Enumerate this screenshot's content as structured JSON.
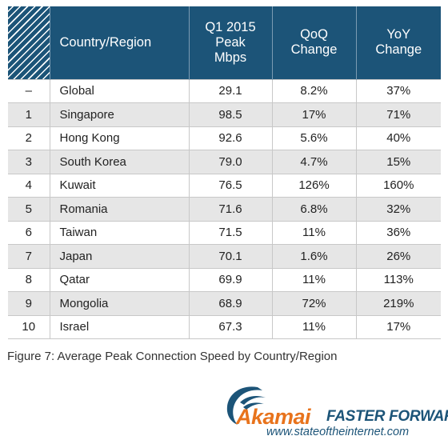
{
  "table": {
    "headers": {
      "rank": "",
      "country": "Country/Region",
      "peak": [
        "Q1 2015",
        "Peak",
        "Mbps"
      ],
      "qoq": [
        "QoQ",
        "Change"
      ],
      "yoy": [
        "YoY",
        "Change"
      ]
    },
    "rows": [
      {
        "rank": "–",
        "country": "Global",
        "peak": "29.1",
        "qoq": "8.2%",
        "yoy": "37%"
      },
      {
        "rank": "1",
        "country": "Singapore",
        "peak": "98.5",
        "qoq": "17%",
        "yoy": "71%"
      },
      {
        "rank": "2",
        "country": "Hong Kong",
        "peak": "92.6",
        "qoq": "5.6%",
        "yoy": "40%"
      },
      {
        "rank": "3",
        "country": "South Korea",
        "peak": "79.0",
        "qoq": "4.7%",
        "yoy": "15%"
      },
      {
        "rank": "4",
        "country": "Kuwait",
        "peak": "76.5",
        "qoq": "126%",
        "yoy": "160%"
      },
      {
        "rank": "5",
        "country": "Romania",
        "peak": "71.6",
        "qoq": "6.8%",
        "yoy": "32%"
      },
      {
        "rank": "6",
        "country": "Taiwan",
        "peak": "71.5",
        "qoq": "11%",
        "yoy": "36%"
      },
      {
        "rank": "7",
        "country": "Japan",
        "peak": "70.1",
        "qoq": "1.6%",
        "yoy": "26%"
      },
      {
        "rank": "8",
        "country": "Qatar",
        "peak": "69.9",
        "qoq": "11%",
        "yoy": "113%"
      },
      {
        "rank": "9",
        "country": "Mongolia",
        "peak": "68.9",
        "qoq": "72%",
        "yoy": "219%"
      },
      {
        "rank": "10",
        "country": "Israel",
        "peak": "67.3",
        "qoq": "11%",
        "yoy": "17%"
      }
    ]
  },
  "caption": "Figure 7: Average Peak Connection Speed by Country/Region",
  "branding": {
    "logo_text": "Akamai",
    "tagline": "FASTER FORWARD",
    "url": "www.stateoftheinternet.com",
    "logo_icon": "akamai-wave-icon"
  },
  "colors": {
    "header_bg": "#1c5478",
    "header_text": "#ffffff",
    "stripe": "#e6e6e6",
    "brand_orange": "#e8731c",
    "brand_blue": "#1c5478"
  },
  "chart_data": {
    "type": "table",
    "title": "Figure 7: Average Peak Connection Speed by Country/Region",
    "columns": [
      "",
      "Country/Region",
      "Q1 2015 Peak Mbps",
      "QoQ Change",
      "YoY Change"
    ],
    "rows": [
      [
        "–",
        "Global",
        "29.1",
        "8.2%",
        "37%"
      ],
      [
        "1",
        "Singapore",
        "98.5",
        "17%",
        "71%"
      ],
      [
        "2",
        "Hong Kong",
        "92.6",
        "5.6%",
        "40%"
      ],
      [
        "3",
        "South Korea",
        "79.0",
        "4.7%",
        "15%"
      ],
      [
        "4",
        "Kuwait",
        "76.5",
        "126%",
        "160%"
      ],
      [
        "5",
        "Romania",
        "71.6",
        "6.8%",
        "32%"
      ],
      [
        "6",
        "Taiwan",
        "71.5",
        "11%",
        "36%"
      ],
      [
        "7",
        "Japan",
        "70.1",
        "1.6%",
        "26%"
      ],
      [
        "8",
        "Qatar",
        "69.9",
        "11%",
        "113%"
      ],
      [
        "9",
        "Mongolia",
        "68.9",
        "72%",
        "219%"
      ],
      [
        "10",
        "Israel",
        "67.3",
        "11%",
        "17%"
      ]
    ]
  }
}
